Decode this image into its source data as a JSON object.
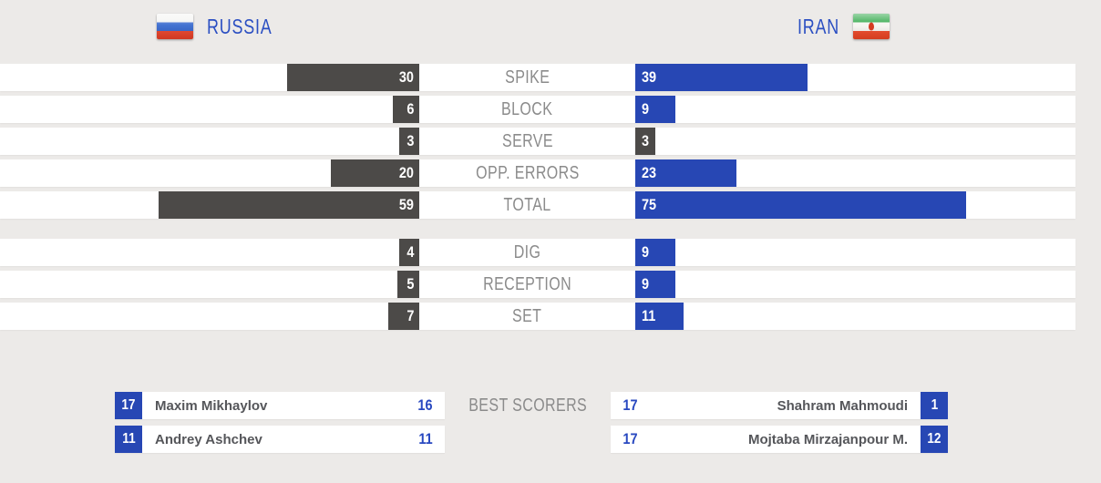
{
  "header": {
    "left_team": {
      "name": "RUSSIA",
      "flag_icon": "russia-flag"
    },
    "right_team": {
      "name": "IRAN",
      "flag_icon": "iran-flag"
    }
  },
  "chart_data": {
    "type": "bar",
    "orientation": "horizontal-paired",
    "categories": [
      "SPIKE",
      "BLOCK",
      "SERVE",
      "OPP. ERRORS",
      "TOTAL",
      "DIG",
      "RECEPTION",
      "SET"
    ],
    "series": [
      {
        "name": "RUSSIA",
        "values": [
          30,
          6,
          3,
          20,
          59,
          4,
          5,
          7
        ]
      },
      {
        "name": "IRAN",
        "values": [
          39,
          9,
          3,
          23,
          75,
          9,
          9,
          11
        ]
      }
    ],
    "value_labels_shown": true,
    "axis_max": 75,
    "legend_position": "top (team headers with flags)"
  },
  "stats": {
    "rows": [
      {
        "label": "SPIKE",
        "left": {
          "value": 30,
          "color": "#4C4A48"
        },
        "right": {
          "value": 39,
          "color": "#2747B4"
        }
      },
      {
        "label": "BLOCK",
        "left": {
          "value": 6,
          "color": "#4C4A48"
        },
        "right": {
          "value": 9,
          "color": "#2747B4"
        }
      },
      {
        "label": "SERVE",
        "left": {
          "value": 3,
          "color": "#4C4A48"
        },
        "right": {
          "value": 3,
          "color": "#4C4A48"
        }
      },
      {
        "label": "OPP. ERRORS",
        "left": {
          "value": 20,
          "color": "#4C4A48"
        },
        "right": {
          "value": 23,
          "color": "#2747B4"
        }
      },
      {
        "label": "TOTAL",
        "left": {
          "value": 59,
          "color": "#4C4A48"
        },
        "right": {
          "value": 75,
          "color": "#2747B4"
        }
      },
      {
        "label": "DIG",
        "left": {
          "value": 4,
          "color": "#4C4A48"
        },
        "right": {
          "value": 9,
          "color": "#2747B4"
        }
      },
      {
        "label": "RECEPTION",
        "left": {
          "value": 5,
          "color": "#4C4A48"
        },
        "right": {
          "value": 9,
          "color": "#2747B4"
        }
      },
      {
        "label": "SET",
        "left": {
          "value": 7,
          "color": "#4C4A48"
        },
        "right": {
          "value": 11,
          "color": "#2747B4"
        }
      }
    ]
  },
  "scorers": {
    "label": "BEST SCORERS",
    "left": [
      {
        "jersey": 17,
        "name": "Maxim Mikhaylov",
        "points": 16
      },
      {
        "jersey": 11,
        "name": "Andrey Ashchev",
        "points": 11
      }
    ],
    "right": [
      {
        "jersey": 1,
        "name": "Shahram Mahmoudi",
        "points": 17
      },
      {
        "jersey": 12,
        "name": "Mojtaba Mirzajanpour M.",
        "points": 17
      }
    ]
  },
  "colors": {
    "background": "#ECEAE8",
    "row_background": "#FFFFFF",
    "bar_blue": "#2747B4",
    "bar_gray": "#4C4A48",
    "team_name_blue": "#2B4FC2",
    "label_gray": "#8B8B8B",
    "scorer_name_gray": "#55565A",
    "points_blue": "#2848C0"
  }
}
